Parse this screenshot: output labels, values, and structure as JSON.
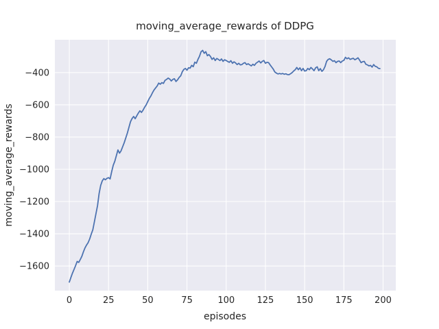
{
  "figure": {
    "background": "#ffffff"
  },
  "chart_data": {
    "type": "line",
    "style": "seaborn-darkgrid",
    "title": "moving_average_rewards of DDPG",
    "xlabel": "episodes",
    "ylabel": "moving_average_rewards",
    "x_ticks": [
      0,
      25,
      50,
      75,
      100,
      125,
      150,
      175,
      200
    ],
    "x_tick_labels": [
      "0",
      "25",
      "50",
      "75",
      "100",
      "125",
      "150",
      "175",
      "200"
    ],
    "y_ticks": [
      -400,
      -600,
      -800,
      -1000,
      -1200,
      -1400,
      -1600
    ],
    "y_tick_labels": [
      "−400",
      "−600",
      "−800",
      "−1000",
      "−1200",
      "−1400",
      "−1600"
    ],
    "xlim": [
      -9.2,
      208.1
    ],
    "ylim": [
      -1753,
      -196
    ],
    "grid": true,
    "grid_color": "#ffffff",
    "plot_bg_color": "#eaeaf2",
    "text_color": "#262626",
    "legend": "none",
    "series": [
      {
        "name": "moving_average_rewards of DDPG",
        "color": "#4c72b0",
        "line_width": 1.8,
        "x": [
          0,
          1,
          2,
          3,
          4,
          5,
          6,
          7,
          8,
          9,
          10,
          11,
          12,
          13,
          14,
          15,
          16,
          17,
          18,
          19,
          20,
          21,
          22,
          23,
          24,
          25,
          26,
          27,
          28,
          29,
          30,
          31,
          32,
          33,
          34,
          35,
          36,
          37,
          38,
          39,
          40,
          41,
          42,
          43,
          44,
          45,
          46,
          47,
          48,
          49,
          50,
          51,
          52,
          53,
          54,
          55,
          56,
          57,
          58,
          59,
          60,
          61,
          62,
          63,
          64,
          65,
          66,
          67,
          68,
          69,
          70,
          71,
          72,
          73,
          74,
          75,
          76,
          77,
          78,
          79,
          80,
          81,
          82,
          83,
          84,
          85,
          86,
          87,
          88,
          89,
          90,
          91,
          92,
          93,
          94,
          95,
          96,
          97,
          98,
          99,
          100,
          101,
          102,
          103,
          104,
          105,
          106,
          107,
          108,
          109,
          110,
          111,
          112,
          113,
          114,
          115,
          116,
          117,
          118,
          119,
          120,
          121,
          122,
          123,
          124,
          125,
          126,
          127,
          128,
          129,
          130,
          131,
          132,
          133,
          134,
          135,
          136,
          137,
          138,
          139,
          140,
          141,
          142,
          143,
          144,
          145,
          146,
          147,
          148,
          149,
          150,
          151,
          152,
          153,
          154,
          155,
          156,
          157,
          158,
          159,
          160,
          161,
          162,
          163,
          164,
          165,
          166,
          167,
          168,
          169,
          170,
          171,
          172,
          173,
          174,
          175,
          176,
          177,
          178,
          179,
          180,
          181,
          182,
          183,
          184,
          185,
          186,
          187,
          188,
          189,
          190,
          191,
          192,
          193,
          194,
          195,
          196,
          197,
          198
        ],
        "y": [
          -1700,
          -1672,
          -1645,
          -1622,
          -1598,
          -1572,
          -1578,
          -1560,
          -1540,
          -1512,
          -1488,
          -1470,
          -1455,
          -1432,
          -1402,
          -1375,
          -1325,
          -1275,
          -1225,
          -1150,
          -1100,
          -1072,
          -1058,
          -1065,
          -1056,
          -1052,
          -1060,
          -1015,
          -975,
          -950,
          -915,
          -880,
          -900,
          -885,
          -860,
          -835,
          -805,
          -775,
          -740,
          -705,
          -685,
          -672,
          -686,
          -668,
          -651,
          -637,
          -647,
          -633,
          -615,
          -600,
          -580,
          -560,
          -545,
          -525,
          -508,
          -495,
          -483,
          -465,
          -472,
          -462,
          -467,
          -448,
          -442,
          -434,
          -440,
          -452,
          -442,
          -438,
          -455,
          -445,
          -430,
          -420,
          -395,
          -380,
          -374,
          -385,
          -370,
          -372,
          -355,
          -363,
          -335,
          -342,
          -318,
          -298,
          -270,
          -262,
          -280,
          -270,
          -295,
          -288,
          -300,
          -318,
          -308,
          -325,
          -312,
          -318,
          -325,
          -315,
          -330,
          -320,
          -325,
          -331,
          -336,
          -326,
          -342,
          -333,
          -340,
          -350,
          -342,
          -352,
          -350,
          -342,
          -338,
          -350,
          -345,
          -352,
          -358,
          -348,
          -355,
          -342,
          -335,
          -328,
          -340,
          -330,
          -325,
          -342,
          -336,
          -338,
          -352,
          -365,
          -378,
          -396,
          -403,
          -408,
          -405,
          -408,
          -405,
          -410,
          -407,
          -412,
          -413,
          -407,
          -400,
          -390,
          -382,
          -368,
          -382,
          -370,
          -388,
          -374,
          -390,
          -388,
          -374,
          -382,
          -368,
          -377,
          -388,
          -370,
          -364,
          -388,
          -375,
          -392,
          -382,
          -362,
          -330,
          -318,
          -314,
          -321,
          -330,
          -326,
          -338,
          -330,
          -328,
          -338,
          -328,
          -324,
          -305,
          -314,
          -308,
          -318,
          -314,
          -311,
          -320,
          -315,
          -308,
          -322,
          -338,
          -332,
          -330,
          -348,
          -352,
          -358,
          -355,
          -366,
          -350,
          -361,
          -364,
          -373,
          -375
        ]
      }
    ]
  }
}
